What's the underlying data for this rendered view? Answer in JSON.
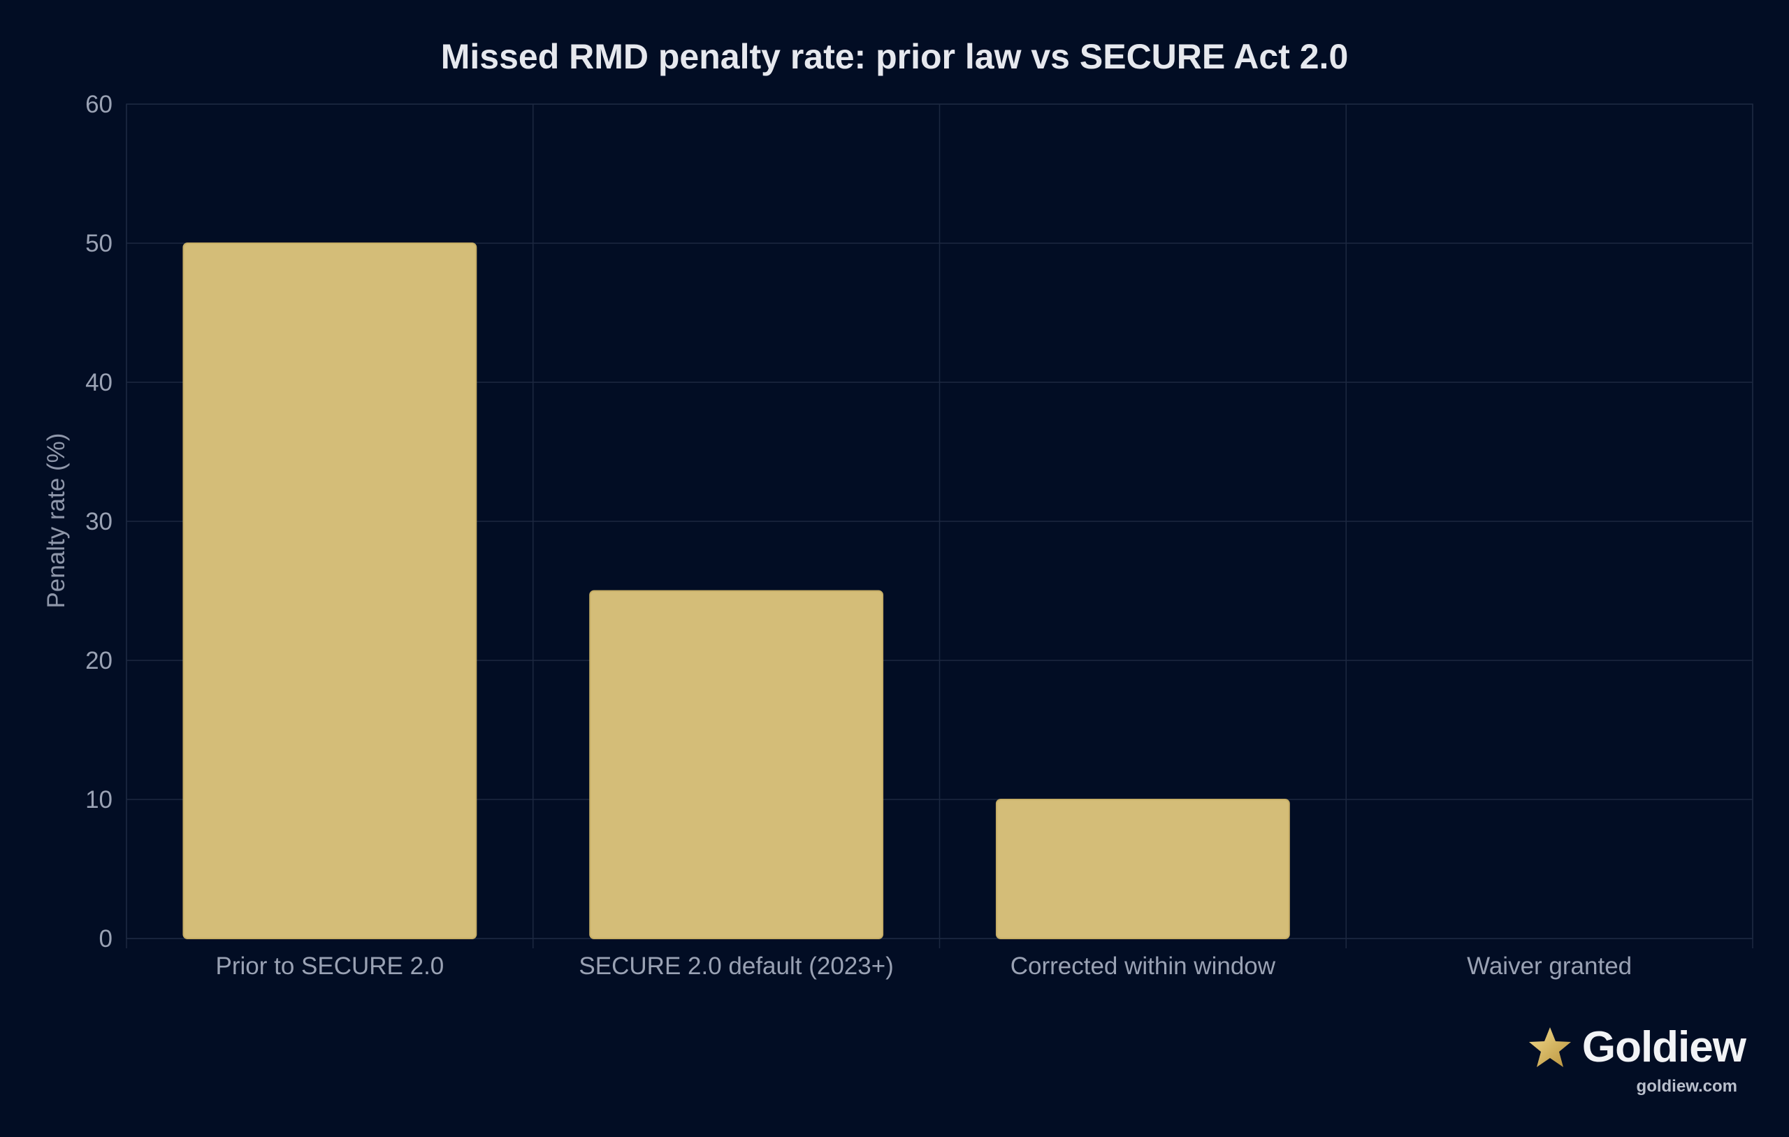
{
  "chart_data": {
    "type": "bar",
    "title": "Missed RMD penalty rate: prior law vs SECURE Act 2.0",
    "xlabel": "",
    "ylabel": "Penalty rate (%)",
    "categories": [
      "Prior to SECURE 2.0",
      "SECURE 2.0 default (2023+)",
      "Corrected within window",
      "Waiver granted"
    ],
    "values": [
      50,
      25,
      10,
      0
    ],
    "ylim": [
      0,
      60
    ],
    "yticks": [
      "0",
      "10",
      "20",
      "30",
      "40",
      "50",
      "60"
    ],
    "grid": true,
    "bar_color": "#d4bd78",
    "background": "#020d24",
    "grid_color": "#1c2840"
  },
  "branding": {
    "logo_word": "Goldiew",
    "logo_url": "goldiew.com",
    "icon": "star-icon"
  }
}
